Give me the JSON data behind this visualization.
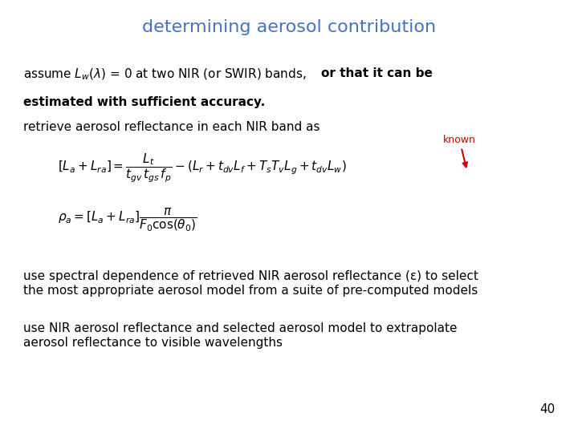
{
  "title": "determining aerosol contribution",
  "title_color": "#4472C4",
  "title_fontsize": 16,
  "background_color": "#ffffff",
  "text_color": "#000000",
  "page_number": "40",
  "retrieve_text": "retrieve aerosol reflectance in each NIR band as",
  "known_label": "known",
  "known_color": "#cc0000",
  "spectral_text": "use spectral dependence of retrieved NIR aerosol reflectance (ε) to select\nthe most appropriate aerosol model from a suite of pre-computed models",
  "nir_text": "use NIR aerosol reflectance and selected aerosol model to extrapolate\naerosol reflectance to visible wavelengths",
  "eq1_fontsize": 11,
  "eq2_fontsize": 11,
  "body_fontsize": 11
}
